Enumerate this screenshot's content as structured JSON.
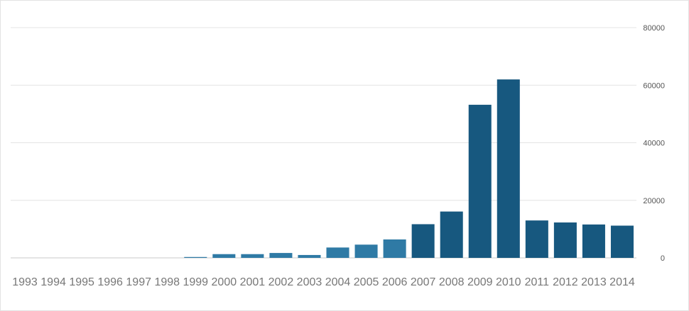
{
  "chart_data": {
    "type": "bar",
    "title": "",
    "xlabel": "",
    "ylabel": "",
    "categories": [
      "1993",
      "1994",
      "1995",
      "1996",
      "1997",
      "1998",
      "1999",
      "2000",
      "2001",
      "2002",
      "2003",
      "2004",
      "2005",
      "2006",
      "2007",
      "2008",
      "2009",
      "2010",
      "2011",
      "2012",
      "2013",
      "2014"
    ],
    "values": [
      0,
      0,
      0,
      0,
      0,
      0,
      300,
      1300,
      1300,
      1700,
      1000,
      3600,
      4600,
      6400,
      11700,
      16100,
      53200,
      62000,
      13000,
      12300,
      11600,
      11200
    ],
    "ylim": [
      0,
      80000
    ],
    "yticks": [
      "0",
      "20000",
      "40000",
      "60000",
      "80000"
    ],
    "y_axis_side": "right",
    "grid": true,
    "colors": {
      "light": "#2f7aa5",
      "dark": "#17587f"
    },
    "color_by_category": [
      "light",
      "light",
      "light",
      "light",
      "light",
      "light",
      "light",
      "light",
      "light",
      "light",
      "light",
      "light",
      "light",
      "light",
      "dark",
      "dark",
      "dark",
      "dark",
      "dark",
      "dark",
      "dark",
      "dark"
    ]
  }
}
